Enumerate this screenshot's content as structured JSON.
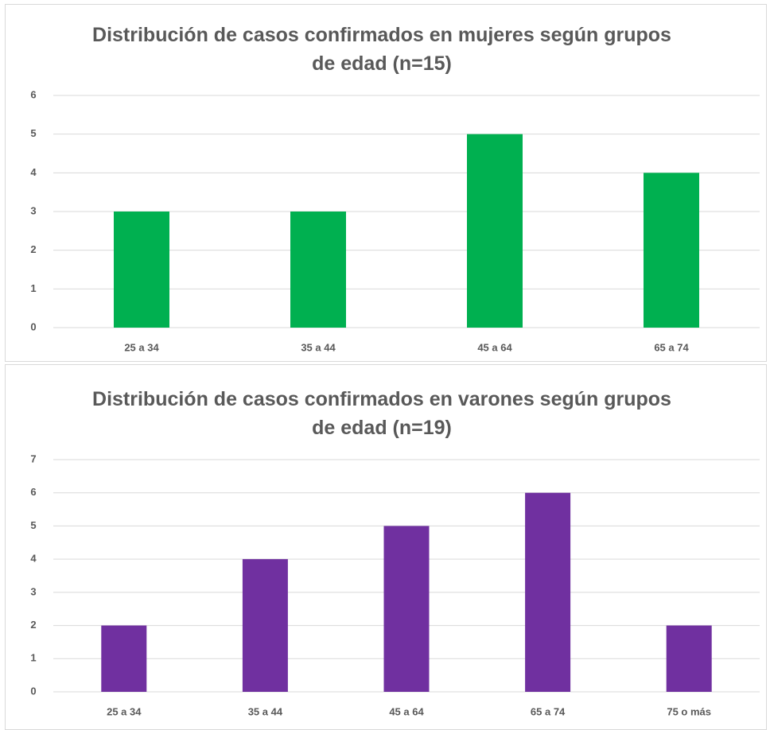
{
  "chart_data": [
    {
      "type": "bar",
      "title": "Distribución de casos confirmados en mujeres según grupos de edad (n=15)",
      "categories": [
        "25 a 34",
        "35 a 44",
        "45 a 64",
        "65 a 74"
      ],
      "values": [
        3,
        3,
        5,
        4
      ],
      "color": "#00b050",
      "ylim": [
        0,
        6
      ],
      "yticks": [
        0,
        1,
        2,
        3,
        4,
        5,
        6
      ],
      "grid": true
    },
    {
      "type": "bar",
      "title": "Distribución de casos confirmados en varones según grupos de edad (n=19)",
      "categories": [
        "25 a 34",
        "35 a 44",
        "45 a 64",
        "65 a 74",
        "75 o más"
      ],
      "values": [
        2,
        4,
        5,
        6,
        2
      ],
      "color": "#7030a0",
      "ylim": [
        0,
        7
      ],
      "yticks": [
        0,
        1,
        2,
        3,
        4,
        5,
        6,
        7
      ],
      "grid": true
    }
  ]
}
